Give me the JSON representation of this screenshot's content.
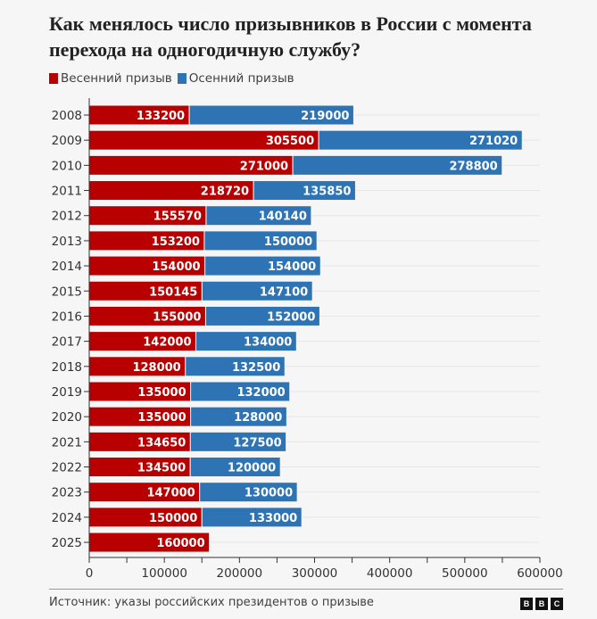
{
  "chart_data": {
    "type": "bar",
    "orientation": "horizontal",
    "stacked": true,
    "title": "Как менялось число призывников в России с момента перехода на одногодичную службу?",
    "categories": [
      "2008",
      "2009",
      "2010",
      "2011",
      "2012",
      "2013",
      "2014",
      "2015",
      "2016",
      "2017",
      "2018",
      "2019",
      "2020",
      "2021",
      "2022",
      "2023",
      "2024",
      "2025"
    ],
    "series": [
      {
        "name": "Весенний призыв",
        "color": "#b80000",
        "values": [
          133200,
          305500,
          271000,
          218720,
          155570,
          153200,
          154000,
          150145,
          155000,
          142000,
          128000,
          135000,
          135000,
          134650,
          134500,
          147000,
          150000,
          160000
        ]
      },
      {
        "name": "Осенний призыв",
        "color": "#2e74b5",
        "values": [
          219000,
          271020,
          278800,
          135850,
          140140,
          150000,
          154000,
          147100,
          152000,
          134000,
          132500,
          132000,
          128000,
          127500,
          120000,
          130000,
          133000,
          null
        ]
      }
    ],
    "xlim": [
      0,
      600000
    ],
    "xticks": [
      "0",
      "100000",
      "200000",
      "300000",
      "400000",
      "500000",
      "600000"
    ],
    "xlabel": "",
    "ylabel": "",
    "legend": "top-left",
    "grid": true
  },
  "footer": {
    "source": "Источник: указы российских президентов о призыве",
    "logo": [
      "B",
      "B",
      "C"
    ]
  }
}
